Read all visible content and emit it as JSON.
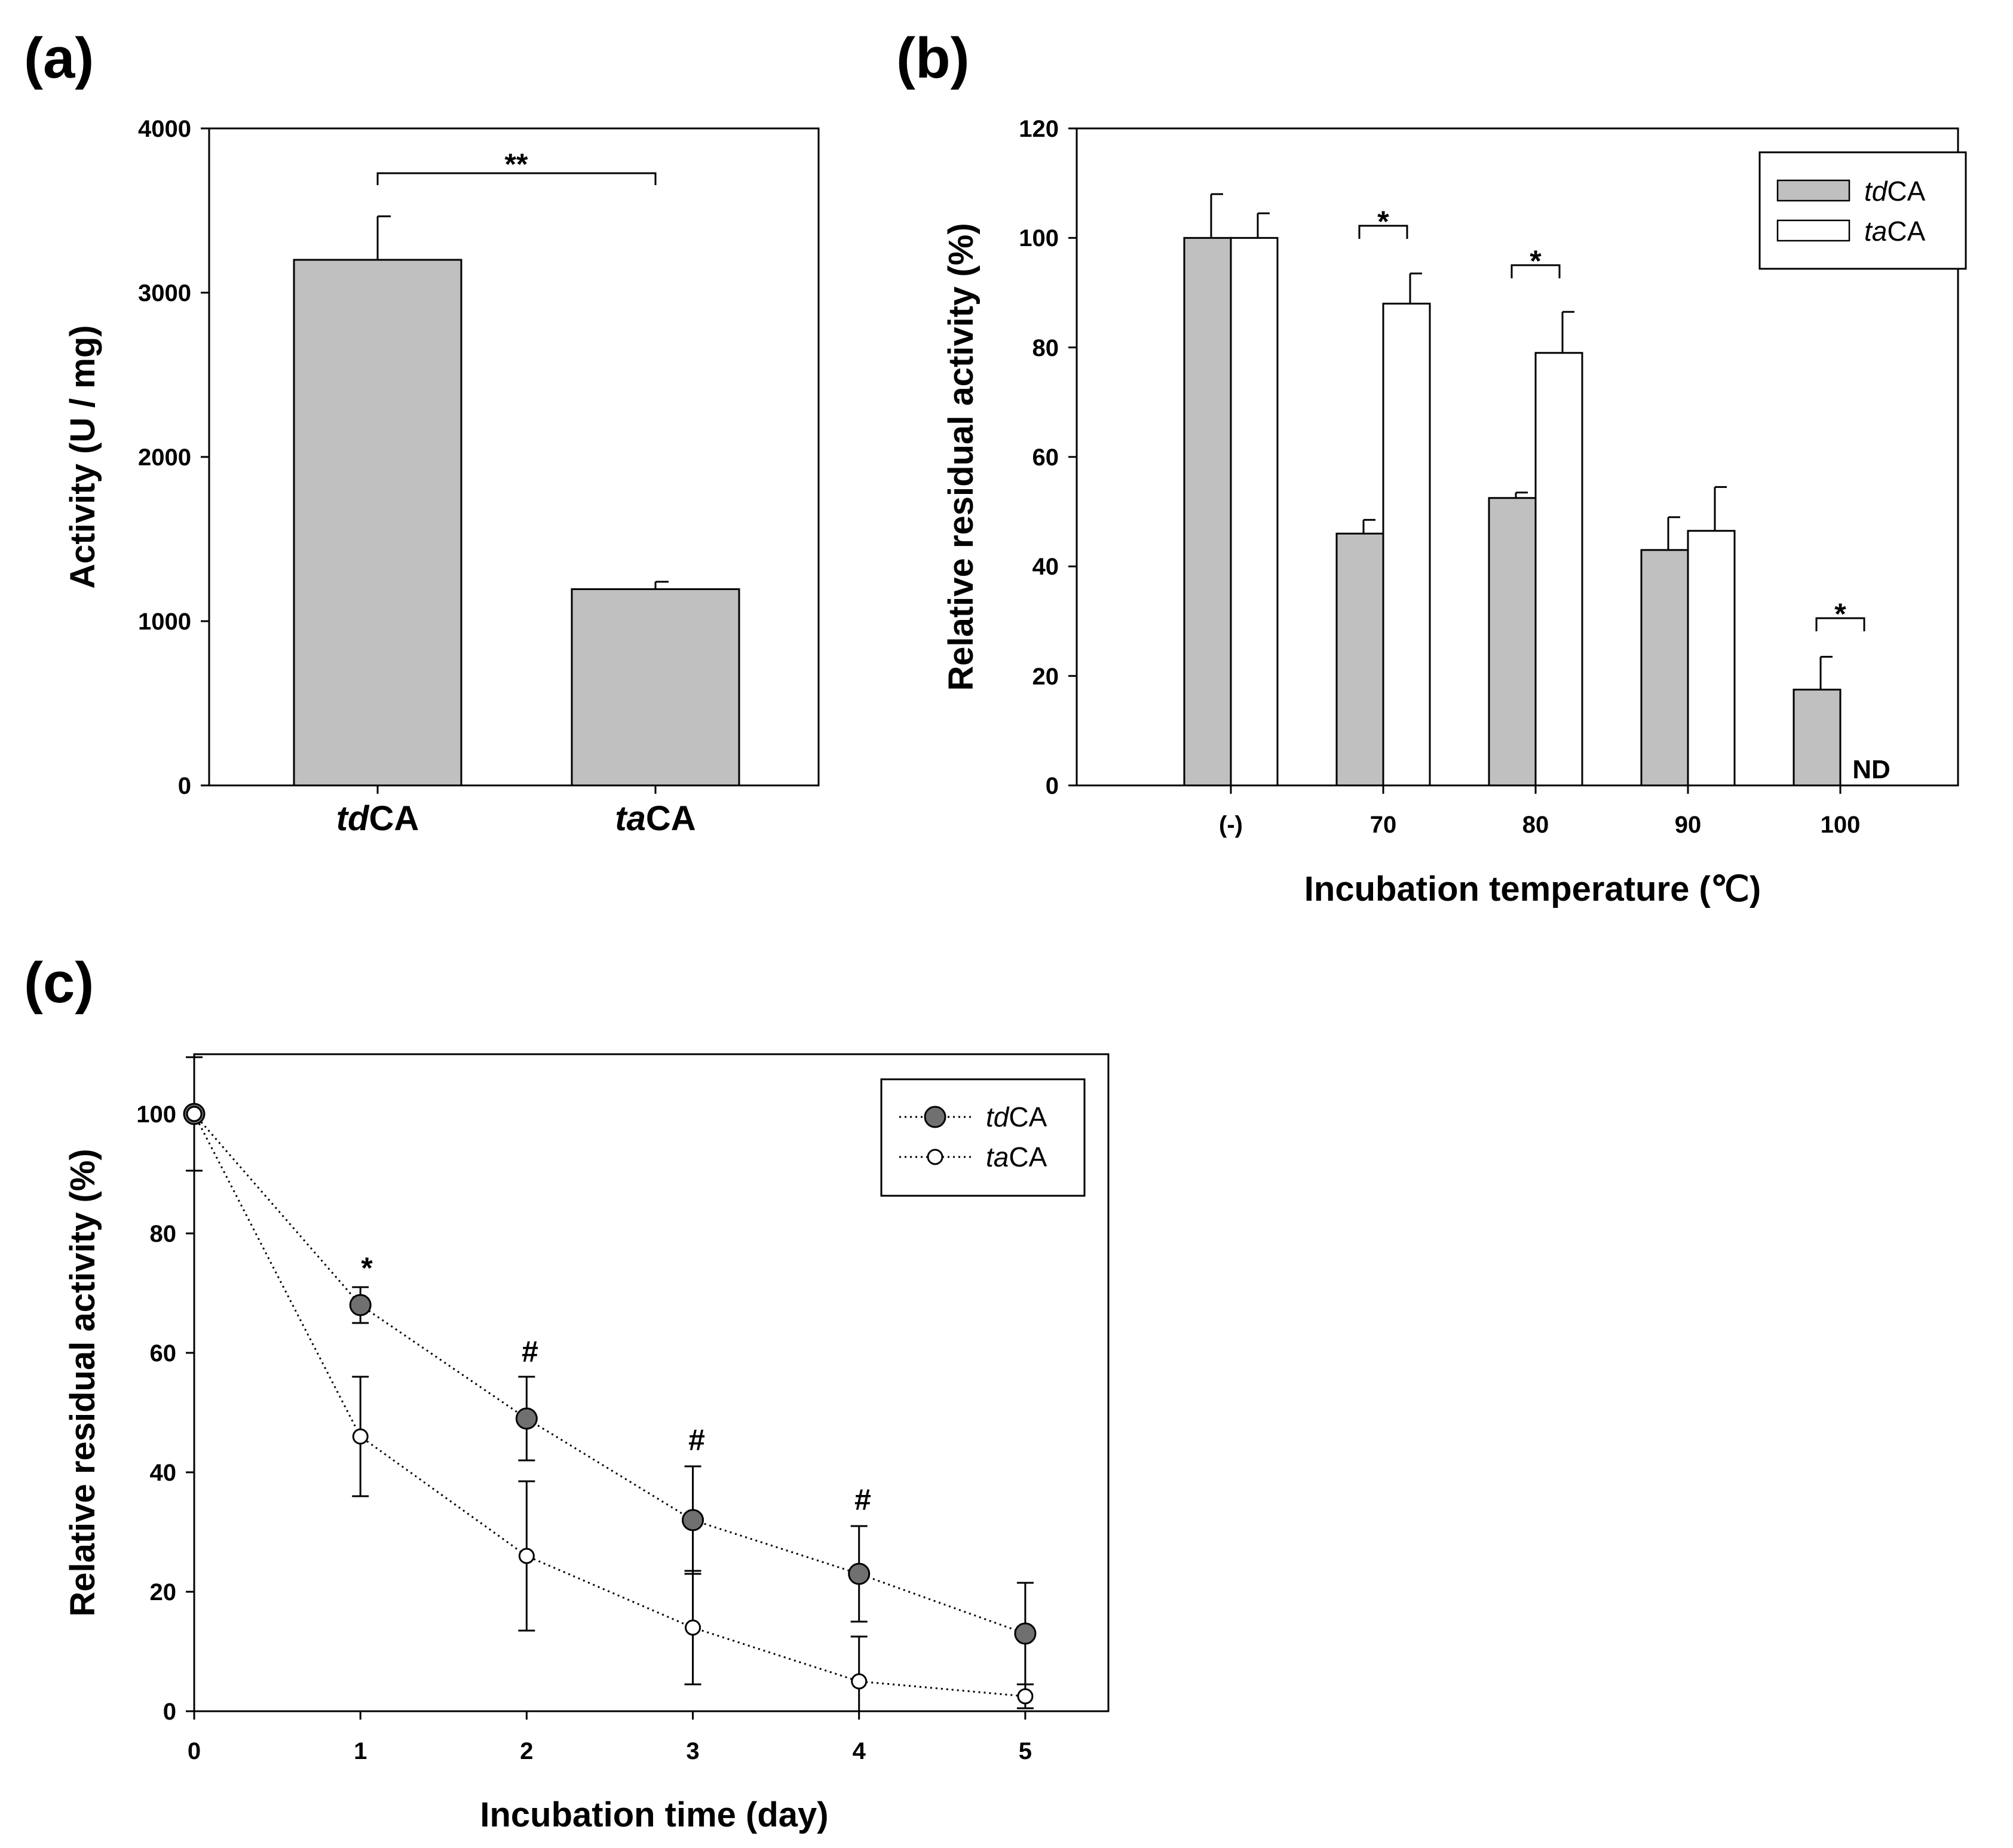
{
  "chart_data": [
    {
      "panel": "(a)",
      "type": "bar",
      "title": "",
      "xlabel": "",
      "ylabel": "Activity (U / mg)",
      "ylim": [
        0,
        4000
      ],
      "yticks": [
        "0",
        "1000",
        "2000",
        "3000",
        "4000"
      ],
      "categories": [
        {
          "pre": "td",
          "post": "CA"
        },
        {
          "pre": "ta",
          "post": "CA"
        }
      ],
      "values": [
        3200,
        1195
      ],
      "errors": [
        265,
        45
      ],
      "color": "#c0c0c0",
      "annotations": [
        {
          "text": "**",
          "between": [
            0,
            1
          ]
        }
      ]
    },
    {
      "panel": "(b)",
      "type": "bar",
      "title": "",
      "xlabel": "Incubation temperature (℃)",
      "ylabel": "Relative residual activity (%)",
      "ylim": [
        0,
        120
      ],
      "yticks": [
        "0",
        "20",
        "40",
        "60",
        "80",
        "100",
        "120"
      ],
      "categories": [
        "(-)",
        "70",
        "80",
        "90",
        "100"
      ],
      "legend_position": "top-right",
      "series": [
        {
          "pre": "td",
          "post": "CA",
          "color": "#c0c0c0",
          "values": [
            100,
            46,
            52.5,
            43,
            17.5
          ],
          "errors": [
            8,
            2.5,
            1,
            6,
            6
          ]
        },
        {
          "pre": "ta",
          "post": "CA",
          "color": "#ffffff",
          "values": [
            100,
            88,
            79,
            46.5,
            null
          ],
          "errors": [
            4.5,
            5.5,
            7.5,
            8,
            null
          ]
        }
      ],
      "annotations": [
        {
          "text": "*",
          "category": 1
        },
        {
          "text": "*",
          "category": 2
        },
        {
          "text": "*",
          "category": 4
        }
      ],
      "not_detected_label": "ND"
    },
    {
      "panel": "(c)",
      "type": "line",
      "title": "",
      "xlabel": "Incubation time (day)",
      "ylabel": "Relative residual activity (%)",
      "xlim": [
        0,
        5.5
      ],
      "ylim": [
        0,
        110
      ],
      "xticks": [
        "0",
        "1",
        "2",
        "3",
        "4",
        "5"
      ],
      "yticks": [
        "0",
        "20",
        "40",
        "60",
        "80",
        "100"
      ],
      "legend_position": "top-right",
      "x": [
        0,
        1,
        2,
        3,
        4,
        5
      ],
      "series": [
        {
          "pre": "td",
          "post": "CA",
          "marker": "filled-circle",
          "color": "#707070",
          "values": [
            100,
            68,
            49,
            32,
            23,
            13
          ],
          "errors": [
            1,
            3,
            7,
            9,
            8,
            8.5
          ]
        },
        {
          "pre": "ta",
          "post": "CA",
          "marker": "open-circle",
          "color": "#ffffff",
          "values": [
            100,
            46,
            26,
            14,
            5,
            2.5
          ],
          "errors": [
            9.5,
            10,
            12.5,
            9.5,
            7.5,
            2
          ]
        }
      ],
      "annotations": [
        {
          "text": "*",
          "x": 1
        },
        {
          "text": "#",
          "x": 2
        },
        {
          "text": "#",
          "x": 3
        },
        {
          "text": "#",
          "x": 4
        }
      ]
    }
  ]
}
